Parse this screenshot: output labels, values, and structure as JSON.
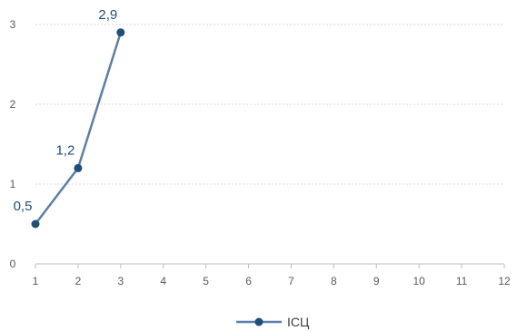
{
  "chart_data": {
    "type": "line",
    "title": "",
    "xlabel": "",
    "ylabel": "",
    "x": [
      1,
      2,
      3
    ],
    "xticks": [
      1,
      2,
      3,
      4,
      5,
      6,
      7,
      8,
      9,
      10,
      11,
      12
    ],
    "yticks": [
      0,
      1,
      2,
      3
    ],
    "xlim": [
      1,
      12
    ],
    "ylim": [
      0,
      3
    ],
    "grid": true,
    "legend_position": "bottom",
    "series": [
      {
        "name": "ІСЦ",
        "values": [
          0.5,
          1.2,
          2.9
        ],
        "labels": [
          "0,5",
          "1,2",
          "2,9"
        ],
        "color": "#5b7fa6",
        "marker_color": "#1f4e79",
        "label_color": "#1f4e79"
      }
    ]
  }
}
